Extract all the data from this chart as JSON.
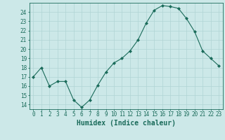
{
  "x": [
    0,
    1,
    2,
    3,
    4,
    5,
    6,
    7,
    8,
    9,
    10,
    11,
    12,
    13,
    14,
    15,
    16,
    17,
    18,
    19,
    20,
    21,
    22,
    23
  ],
  "y": [
    17,
    18,
    16,
    16.5,
    16.5,
    14.5,
    13.7,
    14.5,
    16.1,
    17.5,
    18.5,
    19.0,
    19.8,
    21.0,
    22.8,
    24.2,
    24.7,
    24.6,
    24.4,
    23.3,
    21.9,
    19.8,
    19.0,
    18.2
  ],
  "line_color": "#1a6b5a",
  "marker": "D",
  "marker_size": 2.0,
  "bg_color": "#cce8e8",
  "grid_color": "#b0d4d4",
  "axis_color": "#1a6b5a",
  "xlabel": "Humidex (Indice chaleur)",
  "xlim": [
    -0.5,
    23.5
  ],
  "ylim": [
    13.5,
    25.0
  ],
  "yticks": [
    14,
    15,
    16,
    17,
    18,
    19,
    20,
    21,
    22,
    23,
    24
  ],
  "xticks": [
    0,
    1,
    2,
    3,
    4,
    5,
    6,
    7,
    8,
    9,
    10,
    11,
    12,
    13,
    14,
    15,
    16,
    17,
    18,
    19,
    20,
    21,
    22,
    23
  ],
  "tick_label_fontsize": 5.5,
  "xlabel_fontsize": 7.0,
  "xlabel_fontweight": "bold"
}
